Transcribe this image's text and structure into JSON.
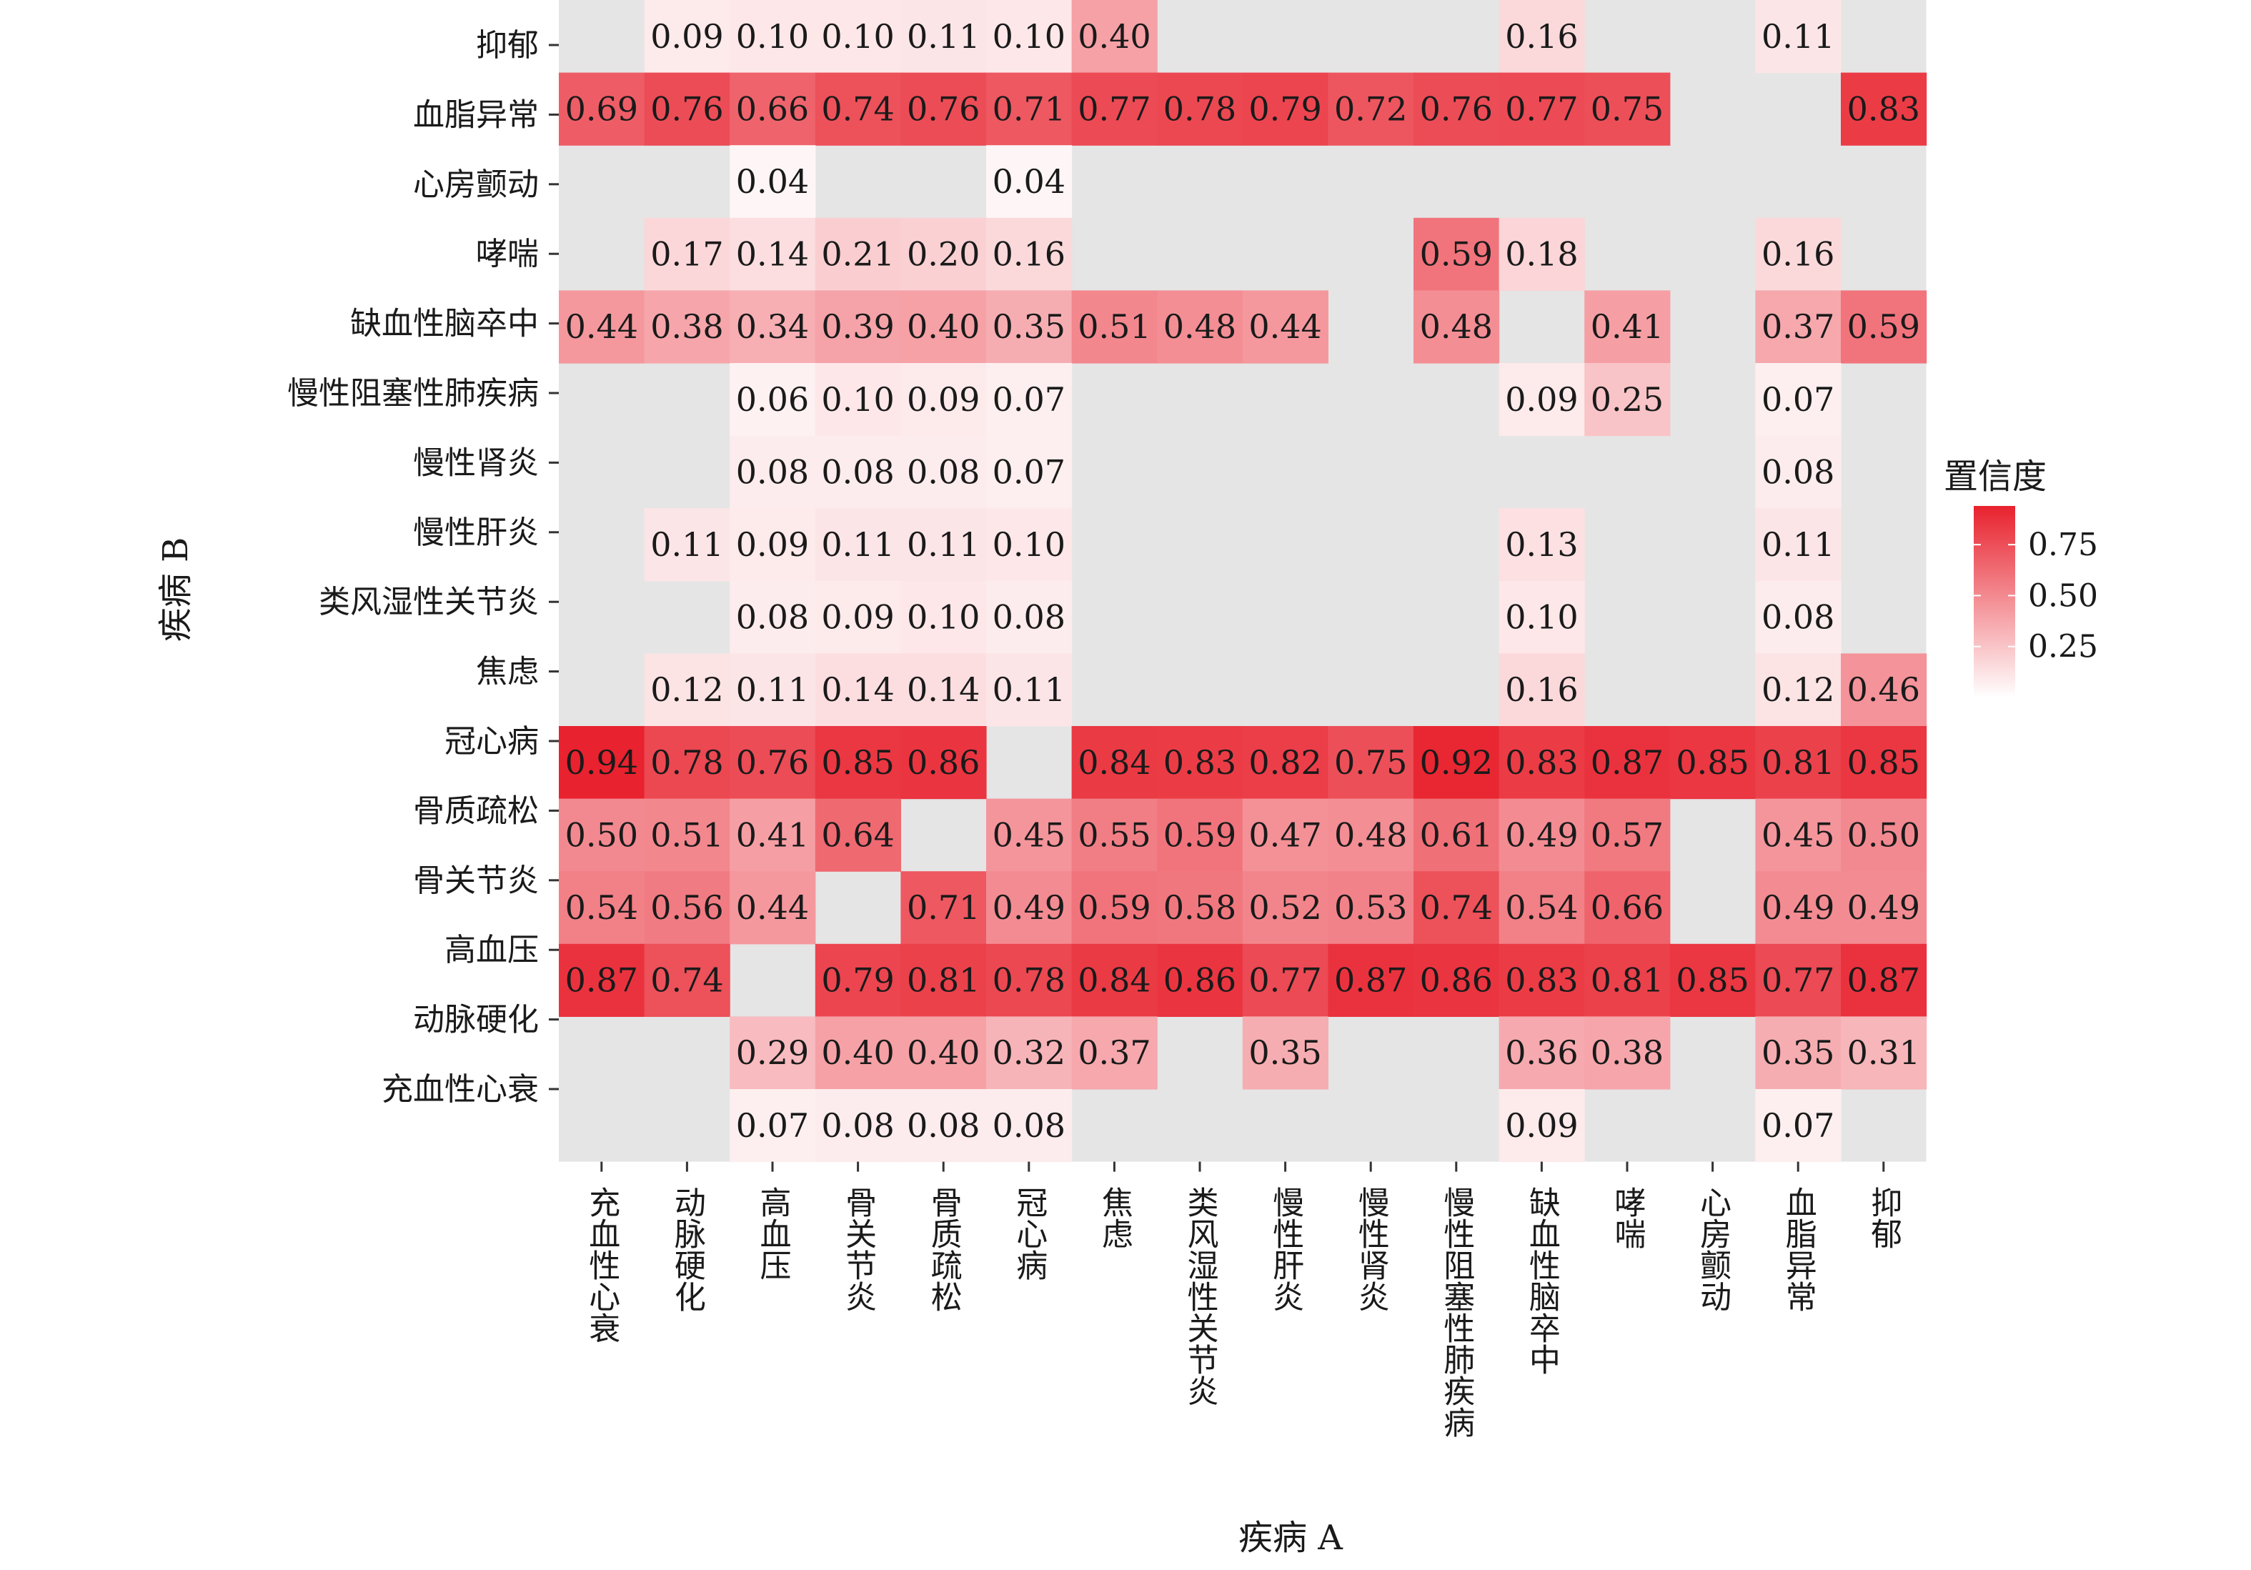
{
  "chart_data": {
    "type": "heatmap",
    "xlabel": "疾病 A",
    "ylabel": "疾病 B",
    "x_categories": [
      "充血性心衰",
      "动脉硬化",
      "高血压",
      "骨关节炎",
      "骨质疏松",
      "冠心病",
      "焦虑",
      "类风湿性关节炎",
      "慢性肝炎",
      "慢性肾炎",
      "慢性阻塞性肺疾病",
      "缺血性脑卒中",
      "哮喘",
      "心房颤动",
      "血脂异常",
      "抑郁"
    ],
    "y_categories": [
      "抑郁",
      "血脂异常",
      "心房颤动",
      "哮喘",
      "缺血性脑卒中",
      "慢性阻塞性肺疾病",
      "慢性肾炎",
      "慢性肝炎",
      "类风湿性关节炎",
      "焦虑",
      "冠心病",
      "骨质疏松",
      "骨关节炎",
      "高血压",
      "动脉硬化",
      "充血性心衰"
    ],
    "row_values": [
      [
        null,
        0.09,
        0.1,
        0.1,
        0.11,
        0.1,
        0.4,
        null,
        null,
        null,
        null,
        0.16,
        null,
        null,
        0.11,
        null
      ],
      [
        0.69,
        0.76,
        0.66,
        0.74,
        0.76,
        0.71,
        0.77,
        0.78,
        0.79,
        0.72,
        0.76,
        0.77,
        0.75,
        null,
        null,
        0.83
      ],
      [
        null,
        null,
        0.04,
        null,
        null,
        0.04,
        null,
        null,
        null,
        null,
        null,
        null,
        null,
        null,
        null,
        null
      ],
      [
        null,
        0.17,
        0.14,
        0.21,
        0.2,
        0.16,
        null,
        null,
        null,
        null,
        0.59,
        0.18,
        null,
        null,
        0.16,
        null
      ],
      [
        0.44,
        0.38,
        0.34,
        0.39,
        0.4,
        0.35,
        0.51,
        0.48,
        0.44,
        null,
        0.48,
        null,
        0.41,
        null,
        0.37,
        0.59
      ],
      [
        null,
        null,
        0.06,
        0.1,
        0.09,
        0.07,
        null,
        null,
        null,
        null,
        null,
        0.09,
        0.25,
        null,
        0.07,
        null
      ],
      [
        null,
        null,
        0.08,
        0.08,
        0.08,
        0.07,
        null,
        null,
        null,
        null,
        null,
        null,
        null,
        null,
        0.08,
        null
      ],
      [
        null,
        0.11,
        0.09,
        0.11,
        0.11,
        0.1,
        null,
        null,
        null,
        null,
        null,
        0.13,
        null,
        null,
        0.11,
        null
      ],
      [
        null,
        null,
        0.08,
        0.09,
        0.1,
        0.08,
        null,
        null,
        null,
        null,
        null,
        0.1,
        null,
        null,
        0.08,
        null
      ],
      [
        null,
        0.12,
        0.11,
        0.14,
        0.14,
        0.11,
        null,
        null,
        null,
        null,
        null,
        0.16,
        null,
        null,
        0.12,
        0.46
      ],
      [
        0.94,
        0.78,
        0.76,
        0.85,
        0.86,
        null,
        0.84,
        0.83,
        0.82,
        0.75,
        0.92,
        0.83,
        0.87,
        0.85,
        0.81,
        0.85
      ],
      [
        0.5,
        0.51,
        0.41,
        0.64,
        null,
        0.45,
        0.55,
        0.59,
        0.47,
        0.48,
        0.61,
        0.49,
        0.57,
        null,
        0.45,
        0.5
      ],
      [
        0.54,
        0.56,
        0.44,
        null,
        0.71,
        0.49,
        0.59,
        0.58,
        0.52,
        0.53,
        0.74,
        0.54,
        0.66,
        null,
        0.49,
        0.49
      ],
      [
        0.87,
        0.74,
        null,
        0.79,
        0.81,
        0.78,
        0.84,
        0.86,
        0.77,
        0.87,
        0.86,
        0.83,
        0.81,
        0.85,
        0.77,
        0.87
      ],
      [
        null,
        null,
        0.29,
        0.4,
        0.4,
        0.32,
        0.37,
        null,
        0.35,
        null,
        null,
        0.36,
        0.38,
        null,
        0.35,
        0.31
      ],
      [
        null,
        null,
        0.07,
        0.08,
        0.08,
        0.08,
        null,
        null,
        null,
        null,
        null,
        0.09,
        null,
        null,
        0.07,
        null
      ]
    ],
    "color_scale": {
      "low_color": "#ffffff",
      "high_color": "#e8222e",
      "domain": [
        0,
        0.94
      ]
    },
    "missing_color": "#e5e5e5",
    "legend": {
      "title": "置信度",
      "ticks": [
        "0.75",
        "0.50",
        "0.25"
      ],
      "tick_values": [
        0.75,
        0.5,
        0.25
      ],
      "placement": "right"
    }
  }
}
